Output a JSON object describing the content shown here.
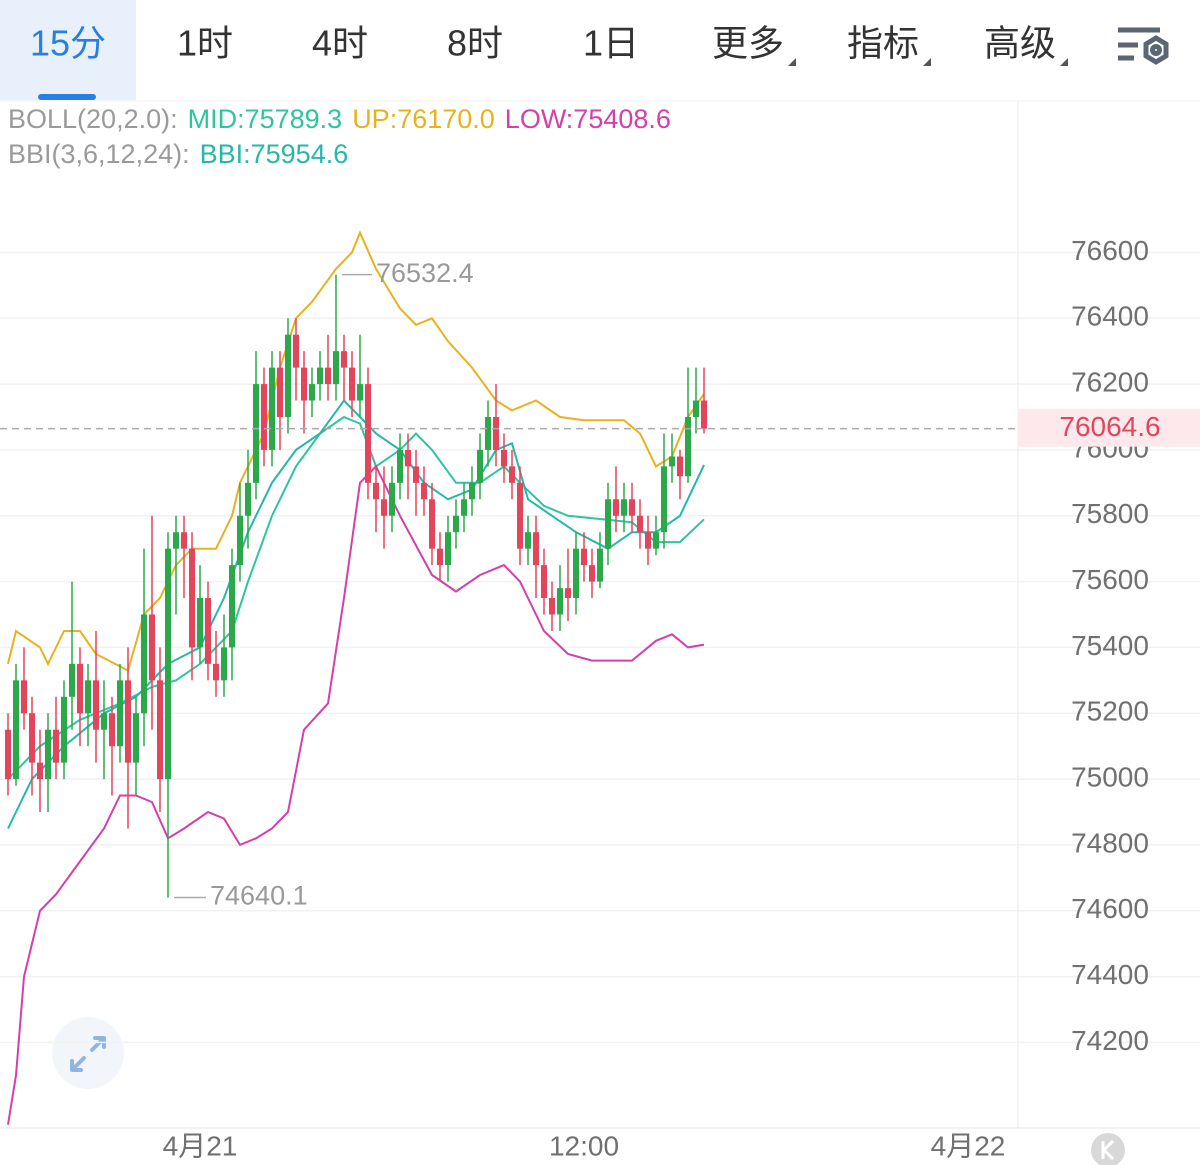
{
  "tabs": [
    "15分",
    "1时",
    "4时",
    "8时",
    "1日",
    "更多",
    "指标",
    "高级"
  ],
  "active_tab": 0,
  "chart_data": {
    "type": "candlestick",
    "x": [
      -24,
      -23,
      -22,
      -21,
      -20,
      -19,
      -18,
      -17,
      -16,
      -15,
      -14,
      -13,
      -12,
      -11,
      -10,
      -9,
      -8,
      -7,
      -6,
      -5,
      -4,
      -3,
      -2,
      -1,
      0,
      1,
      2,
      3,
      4,
      5,
      6,
      7,
      8,
      9,
      10,
      11,
      12,
      13,
      14,
      15,
      16,
      17,
      18,
      19,
      20,
      21,
      22,
      23,
      24,
      25,
      26,
      27,
      28,
      29,
      30,
      31,
      32,
      33,
      34,
      35,
      36,
      37,
      38,
      39,
      40,
      41,
      42,
      43,
      44,
      45,
      46,
      47,
      48,
      49,
      50,
      51,
      52,
      53,
      54,
      55,
      56,
      57,
      58,
      59,
      60,
      61,
      62,
      63
    ],
    "open": [
      75150,
      75000,
      75300,
      75200,
      75050,
      75000,
      75150,
      75050,
      75250,
      75350,
      75200,
      75300,
      75150,
      75200,
      75100,
      75300,
      75050,
      75200,
      75500,
      75300,
      75000,
      75700,
      75750,
      75700,
      75400,
      75550,
      75350,
      75300,
      75400,
      75650,
      75800,
      75900,
      76200,
      76000,
      76250,
      76100,
      76350,
      76250,
      76150,
      76200,
      76250,
      76200,
      76300,
      76250,
      76150,
      76200,
      75900,
      75850,
      75800,
      75900,
      76000,
      75950,
      75900,
      75850,
      75700,
      75650,
      75750,
      75800,
      75850,
      75900,
      76000,
      76100,
      76000,
      75950,
      75900,
      75700,
      75750,
      75650,
      75550,
      75500,
      75580,
      75550,
      75700,
      75650,
      75600,
      75700,
      75850,
      75800,
      75850,
      75800,
      75750,
      75700,
      75750,
      75950,
      75980,
      75920,
      76100,
      76150
    ],
    "high": [
      75200,
      75350,
      75400,
      75250,
      75150,
      75200,
      75250,
      75300,
      75600,
      75400,
      75350,
      75450,
      75300,
      75250,
      75350,
      75400,
      75250,
      75700,
      75800,
      75400,
      75750,
      75800,
      75800,
      75750,
      75650,
      75600,
      75450,
      75500,
      75700,
      75900,
      76000,
      76300,
      76250,
      76300,
      76300,
      76400,
      76400,
      76300,
      76250,
      76300,
      76350,
      76532.4,
      76350,
      76300,
      76350,
      76250,
      75950,
      75950,
      75950,
      76050,
      76050,
      76000,
      75950,
      75900,
      75750,
      75800,
      75850,
      75900,
      75950,
      76050,
      76150,
      76200,
      76050,
      76000,
      75950,
      75800,
      75800,
      75700,
      75600,
      75650,
      75700,
      75750,
      75750,
      75700,
      75750,
      75900,
      75950,
      75900,
      75900,
      75850,
      75800,
      75800,
      76050,
      76050,
      76000,
      76250,
      76250,
      76250
    ],
    "low": [
      74950,
      74980,
      75150,
      74950,
      74900,
      74900,
      75000,
      75000,
      75150,
      75100,
      75100,
      75050,
      75000,
      74950,
      75050,
      74850,
      74950,
      75100,
      75150,
      74900,
      74640.1,
      75500,
      75550,
      75300,
      75350,
      75300,
      75250,
      75250,
      75300,
      75600,
      75700,
      75850,
      75950,
      75950,
      76000,
      76050,
      76150,
      76050,
      76100,
      76150,
      76150,
      76150,
      76150,
      76100,
      76100,
      75850,
      75750,
      75700,
      75750,
      75850,
      75850,
      75800,
      75800,
      75650,
      75600,
      75600,
      75700,
      75750,
      75800,
      75850,
      75950,
      75950,
      75900,
      75850,
      75650,
      75650,
      75550,
      75500,
      75450,
      75450,
      75480,
      75500,
      75600,
      75550,
      75580,
      75650,
      75750,
      75750,
      75750,
      75700,
      75650,
      75680,
      75700,
      75900,
      75850,
      75900,
      76050,
      76050
    ],
    "close": [
      75000,
      75300,
      75200,
      75050,
      75000,
      75150,
      75050,
      75250,
      75350,
      75200,
      75300,
      75150,
      75200,
      75100,
      75300,
      75050,
      75200,
      75500,
      75300,
      75000,
      75700,
      75750,
      75700,
      75400,
      75550,
      75350,
      75300,
      75400,
      75650,
      75800,
      75900,
      76200,
      76000,
      76250,
      76100,
      76350,
      76250,
      76150,
      76200,
      76250,
      76200,
      76300,
      76250,
      76150,
      76200,
      75900,
      75850,
      75800,
      75900,
      76000,
      75950,
      75900,
      75850,
      75700,
      75650,
      75750,
      75800,
      75850,
      75900,
      76000,
      76100,
      76000,
      75950,
      75900,
      75700,
      75750,
      75650,
      75550,
      75500,
      75580,
      75550,
      75700,
      75650,
      75600,
      75700,
      75850,
      75800,
      75850,
      75800,
      75750,
      75700,
      75750,
      75950,
      75980,
      75920,
      76100,
      76150,
      76064.6
    ],
    "up_color": "#2aa84a",
    "down_color": "#e2455c",
    "indicator_groups": [
      {
        "label": "BOLL(20,2.0):",
        "series": [
          {
            "label": "MID:75789.3",
            "color": "#2ec4a0",
            "x": [
              -24,
              -20,
              -15,
              -10,
              -6,
              -3,
              0,
              4,
              6,
              9,
              12,
              15,
              18,
              20,
              22,
              25,
              27,
              29,
              32,
              35,
              38,
              40,
              43,
              46,
              50,
              54,
              57,
              60,
              63
            ],
            "values": [
              75000,
              75100,
              75180,
              75230,
              75280,
              75300,
              75350,
              75450,
              75600,
              75800,
              75950,
              76050,
              76100,
              76080,
              75950,
              76000,
              76050,
              76000,
              75900,
              75900,
              75950,
              75900,
              75830,
              75800,
              75790,
              75780,
              75720,
              75720,
              75789.3
            ]
          },
          {
            "label": "UP:76170.0",
            "color": "#e8b21e",
            "x": [
              -24,
              -23,
              -20,
              -19,
              -17,
              -15,
              -13,
              -9,
              -7,
              -5,
              -3,
              -1,
              2,
              4,
              5,
              8,
              10,
              12,
              14,
              17,
              19,
              20,
              22,
              25,
              27,
              29,
              31,
              34,
              37,
              39,
              42,
              45,
              48,
              53,
              55,
              57,
              59,
              61,
              63
            ],
            "values": [
              75350,
              75450,
              75400,
              75350,
              75450,
              75450,
              75380,
              75330,
              75500,
              75550,
              75650,
              75700,
              75700,
              75800,
              75900,
              76050,
              76250,
              76400,
              76450,
              76550,
              76600,
              76660,
              76550,
              76430,
              76380,
              76400,
              76330,
              76250,
              76150,
              76120,
              76150,
              76100,
              76090,
              76090,
              76050,
              75950,
              75980,
              76100,
              76170.0
            ]
          },
          {
            "label": "LOW:75408.6",
            "color": "#d43fa8",
            "x": [
              -24,
              -23,
              -22,
              -20,
              -18,
              -15,
              -12,
              -10,
              -8,
              -6,
              -4,
              -2,
              1,
              3,
              5,
              7,
              9,
              11,
              13,
              16,
              18,
              20,
              22,
              25,
              29,
              32,
              35,
              38,
              40,
              43,
              46,
              49,
              54,
              57,
              59,
              61,
              63
            ],
            "values": [
              73950,
              74100,
              74400,
              74600,
              74650,
              74750,
              74850,
              74950,
              74950,
              74930,
              74820,
              74850,
              74900,
              74880,
              74800,
              74820,
              74850,
              74900,
              75150,
              75230,
              75550,
              75900,
              75950,
              75800,
              75620,
              75570,
              75620,
              75650,
              75600,
              75450,
              75380,
              75360,
              75360,
              75420,
              75440,
              75400,
              75408.6
            ]
          }
        ]
      },
      {
        "label": "BBI(3,6,12,24):",
        "series": [
          {
            "label": "BBI:75954.6",
            "color": "#26b8a6",
            "x": [
              -24,
              -21,
              -17,
              -12,
              -8,
              -4,
              0,
              3,
              6,
              9,
              12,
              15,
              18,
              20,
              22,
              25,
              28,
              31,
              34,
              37,
              39,
              41,
              44,
              47,
              51,
              54,
              57,
              60,
              63
            ],
            "values": [
              74850,
              75000,
              75100,
              75200,
              75250,
              75350,
              75400,
              75550,
              75750,
              75900,
              76000,
              76050,
              76150,
              76100,
              76050,
              76000,
              75900,
              75850,
              75880,
              76000,
              76020,
              75850,
              75800,
              75750,
              75700,
              75750,
              75750,
              75800,
              75954.6
            ]
          }
        ]
      }
    ],
    "ylim": [
      73940,
      77060
    ],
    "yticks": [
      74200,
      74400,
      74600,
      74800,
      75000,
      75200,
      75400,
      75600,
      75800,
      76000,
      76200,
      76400,
      76600
    ],
    "xlim": [
      -25,
      102.25
    ],
    "xticks": [
      {
        "value": 0,
        "label": "4月21"
      },
      {
        "value": 48,
        "label": "12:00"
      },
      {
        "value": 96,
        "label": "4月22"
      }
    ],
    "grid": true
  }
}
